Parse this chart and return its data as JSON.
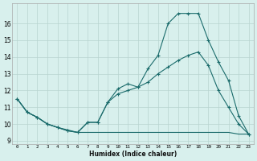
{
  "xlabel": "Humidex (Indice chaleur)",
  "x_ticks": [
    0,
    1,
    2,
    3,
    4,
    5,
    6,
    7,
    8,
    9,
    10,
    11,
    12,
    13,
    14,
    15,
    16,
    17,
    18,
    19,
    20,
    21,
    22,
    23
  ],
  "ylim": [
    8.8,
    17.2
  ],
  "xlim": [
    -0.5,
    23.5
  ],
  "yticks": [
    9,
    10,
    11,
    12,
    13,
    14,
    15,
    16
  ],
  "bg_color": "#d8f0ed",
  "line_color": "#1a6b6b",
  "grid_color": "#b8d4d0",
  "line1_x": [
    0,
    1,
    2,
    3,
    4,
    5,
    6,
    7,
    8,
    9,
    10,
    11,
    12,
    13,
    14,
    15,
    16,
    17,
    18,
    19,
    20,
    21,
    22,
    23
  ],
  "line1_y": [
    11.5,
    10.7,
    10.4,
    10.0,
    9.8,
    9.6,
    9.5,
    10.1,
    10.1,
    11.3,
    12.1,
    12.4,
    12.2,
    13.3,
    14.1,
    16.0,
    16.6,
    16.6,
    16.6,
    15.0,
    13.7,
    12.6,
    10.5,
    9.4
  ],
  "line2_x": [
    0,
    1,
    2,
    3,
    4,
    5,
    6,
    7,
    8,
    9,
    10,
    11,
    12,
    13,
    14,
    15,
    16,
    17,
    18,
    19,
    20,
    21,
    22,
    23
  ],
  "line2_y": [
    11.5,
    10.7,
    10.4,
    10.0,
    9.8,
    9.6,
    9.5,
    10.1,
    10.1,
    11.3,
    11.8,
    12.0,
    12.2,
    12.5,
    13.0,
    13.4,
    13.8,
    14.1,
    14.3,
    13.5,
    12.0,
    11.0,
    10.0,
    9.4
  ],
  "line3_x": [
    0,
    1,
    2,
    3,
    4,
    5,
    6,
    7,
    8,
    9,
    10,
    11,
    12,
    13,
    14,
    15,
    16,
    17,
    18,
    19,
    20,
    21,
    22,
    23
  ],
  "line3_y": [
    11.5,
    10.7,
    10.4,
    10.0,
    9.8,
    9.65,
    9.5,
    9.5,
    9.5,
    9.5,
    9.5,
    9.5,
    9.5,
    9.5,
    9.5,
    9.5,
    9.5,
    9.5,
    9.5,
    9.5,
    9.5,
    9.5,
    9.4,
    9.4
  ],
  "xlabel_fontsize": 5.5,
  "ytick_fontsize": 5.5,
  "xtick_fontsize": 4.2
}
